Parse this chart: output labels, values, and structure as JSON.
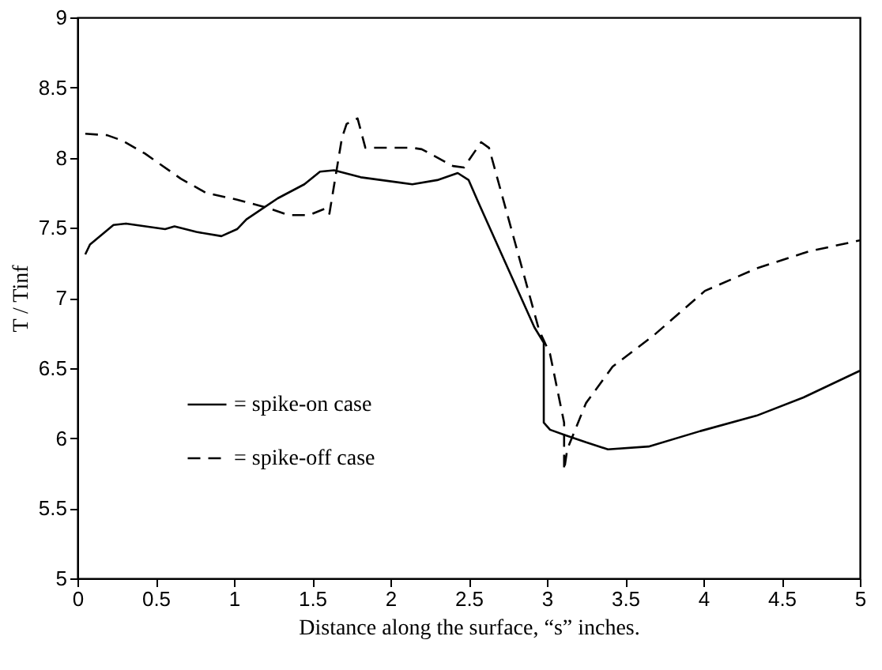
{
  "chart_data": {
    "type": "line",
    "xlabel": "Distance along the surface, “s” inches.",
    "ylabel": "T / Tinf",
    "xlim": [
      0,
      5
    ],
    "xticks": [
      0,
      0.5,
      1,
      1.5,
      2,
      2.5,
      3,
      3.5,
      4,
      4.5,
      5
    ],
    "ylim": [
      5,
      9
    ],
    "yticks": [
      5,
      5.5,
      6,
      6.5,
      7,
      7.5,
      8,
      8.5,
      9
    ],
    "grid": false,
    "legend": "bottom left",
    "marker": "none",
    "series": [
      {
        "name": "= spike-on case",
        "color": "#000000",
        "line_style": "solid",
        "x": [
          0.05,
          0.08,
          0.23,
          0.31,
          0.56,
          0.62,
          0.76,
          0.92,
          1.02,
          1.08,
          1.28,
          1.45,
          1.55,
          1.64,
          1.81,
          2.14,
          2.3,
          2.43,
          2.5,
          2.57,
          2.92,
          2.98,
          2.98,
          3.02,
          3.12,
          3.25,
          3.39,
          3.65,
          3.98,
          4.34,
          4.64,
          5.0
        ],
        "values": [
          7.31,
          7.38,
          7.52,
          7.53,
          7.49,
          7.51,
          7.47,
          7.44,
          7.49,
          7.56,
          7.71,
          7.81,
          7.9,
          7.91,
          7.86,
          7.81,
          7.84,
          7.89,
          7.84,
          7.66,
          6.79,
          6.68,
          6.11,
          6.06,
          6.02,
          5.97,
          5.92,
          5.94,
          6.05,
          6.16,
          6.29,
          6.48
        ]
      },
      {
        "name": "= spike-off case",
        "color": "#000000",
        "line_style": "dashed",
        "x": [
          0.05,
          0.19,
          0.29,
          0.43,
          0.66,
          0.82,
          1.02,
          1.22,
          1.35,
          1.48,
          1.59,
          1.61,
          1.69,
          1.72,
          1.79,
          1.84,
          1.87,
          2.14,
          2.2,
          2.4,
          2.47,
          2.58,
          2.63,
          2.95,
          3.02,
          3.11,
          3.11,
          3.13,
          3.25,
          3.42,
          3.68,
          4.01,
          4.34,
          4.67,
          5.0
        ],
        "values": [
          8.17,
          8.16,
          8.12,
          8.03,
          7.85,
          7.75,
          7.7,
          7.64,
          7.59,
          7.59,
          7.64,
          7.6,
          8.14,
          8.24,
          8.28,
          8.07,
          8.07,
          8.07,
          8.06,
          7.94,
          7.93,
          8.11,
          8.07,
          6.77,
          6.6,
          6.11,
          5.77,
          5.92,
          6.25,
          6.51,
          6.73,
          7.05,
          7.21,
          7.33,
          7.41
        ]
      }
    ]
  }
}
